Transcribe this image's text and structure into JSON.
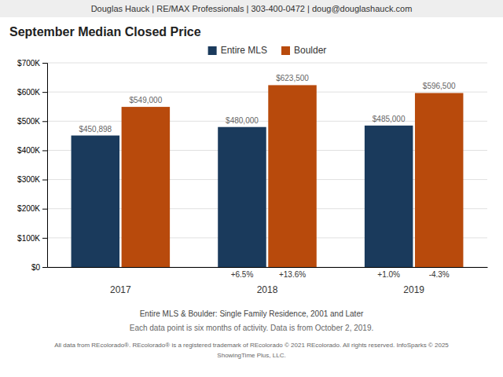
{
  "chart_data": {
    "type": "bar",
    "title": "September Median Closed Price",
    "categories": [
      "2017",
      "2018",
      "2019"
    ],
    "series": [
      {
        "name": "Entire MLS",
        "color": "#1a3a5c",
        "values": [
          450898,
          480000,
          485000
        ],
        "value_labels": [
          "$450,898",
          "$480,000",
          "$485,000"
        ],
        "change_labels": [
          null,
          "+6.5%",
          "+1.0%"
        ]
      },
      {
        "name": "Boulder",
        "color": "#b84a0c",
        "values": [
          549000,
          623500,
          596500
        ],
        "value_labels": [
          "$549,000",
          "$623,500",
          "$596,500"
        ],
        "change_labels": [
          null,
          "+13.6%",
          "-4.3%"
        ]
      }
    ],
    "ylim": [
      0,
      700000
    ],
    "yticks": [
      {
        "value": 0,
        "label": "$0"
      },
      {
        "value": 100000,
        "label": "$100K"
      },
      {
        "value": 200000,
        "label": "$200K"
      },
      {
        "value": 300000,
        "label": "$300K"
      },
      {
        "value": 400000,
        "label": "$400K"
      },
      {
        "value": 500000,
        "label": "$500K"
      },
      {
        "value": 600000,
        "label": "$600K"
      },
      {
        "value": 700000,
        "label": "$700K"
      }
    ],
    "grid": true,
    "legend": "top",
    "data_labels": true,
    "annotations": [
      "Douglas Hauck | RE/MAX Professionals | 303-400-0472 | doug@douglashauck.com",
      "Entire MLS & Boulder: Single Family Residence, 2001 and Later",
      "Each data point is six months of activity. Data is from October 2, 2019.",
      "All data from REcolorado®. REcolorado® is a registered trademark of REcolorado © 2021 REcolorado. All rights reserved. InfoSparks © 2025",
      "ShowingTime Plus, LLC."
    ]
  }
}
